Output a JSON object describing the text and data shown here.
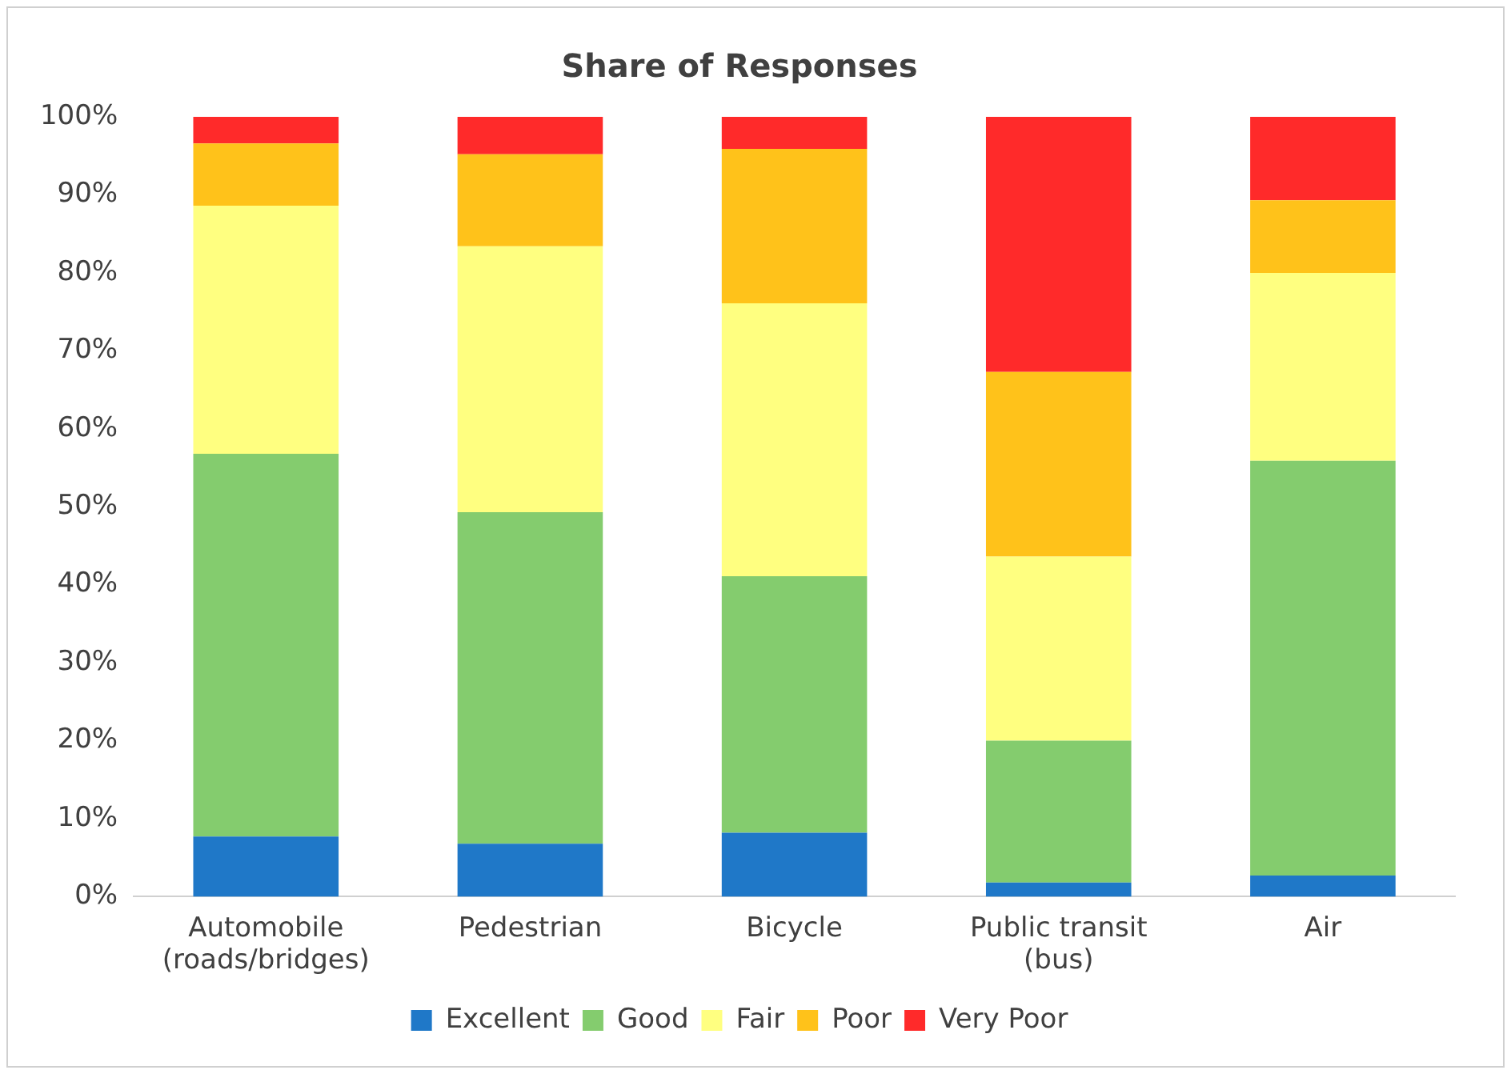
{
  "chart_data": {
    "type": "bar",
    "title": "Share of Responses",
    "stacked": true,
    "legend": "bottom",
    "grid": false,
    "categories": [
      "Automobile\n(roads/bridges)",
      "Pedestrian",
      "Bicycle",
      "Public transit\n(bus)",
      "Air"
    ],
    "ylim": [
      0,
      100
    ],
    "yticks": [
      {
        "value": 0,
        "label": "0%"
      },
      {
        "value": 10,
        "label": "10%"
      },
      {
        "value": 20,
        "label": "20%"
      },
      {
        "value": 30,
        "label": "30%"
      },
      {
        "value": 40,
        "label": "40%"
      },
      {
        "value": 50,
        "label": "50%"
      },
      {
        "value": 60,
        "label": "60%"
      },
      {
        "value": 70,
        "label": "70%"
      },
      {
        "value": 80,
        "label": "80%"
      },
      {
        "value": 90,
        "label": "90%"
      },
      {
        "value": 100,
        "label": "100%"
      }
    ],
    "series": [
      {
        "name": "Excellent",
        "color": "#1f78c8",
        "values": [
          7.7,
          6.8,
          8.2,
          1.8,
          2.7
        ]
      },
      {
        "name": "Good",
        "color": "#84cc6e",
        "values": [
          49.1,
          42.5,
          32.9,
          18.2,
          53.2
        ]
      },
      {
        "name": "Fair",
        "color": "#ffff80",
        "values": [
          31.8,
          34.1,
          35.0,
          23.6,
          24.1
        ]
      },
      {
        "name": "Poor",
        "color": "#ffc21a",
        "values": [
          8.0,
          11.8,
          19.8,
          23.7,
          9.3
        ]
      },
      {
        "name": "Very Poor",
        "color": "#ff2a2a",
        "values": [
          3.4,
          4.8,
          4.1,
          32.7,
          10.7
        ]
      }
    ]
  }
}
